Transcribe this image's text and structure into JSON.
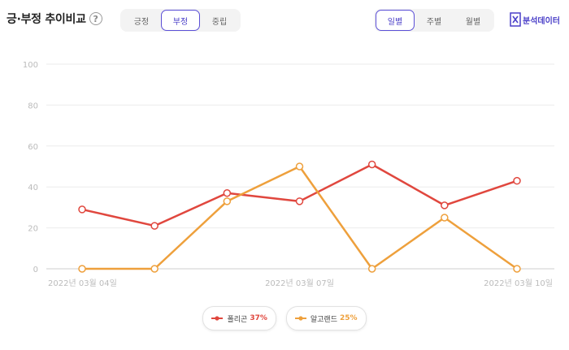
{
  "header": {
    "title": "긍·부정 추이비교",
    "help_symbol": "?",
    "sentiment_tabs": [
      "긍정",
      "부정",
      "중립"
    ],
    "sentiment_active": 1,
    "period_tabs": [
      "일별",
      "주별",
      "월별"
    ],
    "period_active": 0,
    "analysis_label": "분석데이터"
  },
  "colors": {
    "accent": "#5b4fd6",
    "series1": "#e0473e",
    "series2": "#eea03c"
  },
  "chart_data": {
    "type": "line",
    "x": [
      "2022-03-04",
      "2022-03-05",
      "2022-03-06",
      "2022-03-07",
      "2022-03-08",
      "2022-03-09",
      "2022-03-10"
    ],
    "x_tick_labels": [
      "2022년 03월 04일",
      "2022년 03월 07일",
      "2022년 03월 10일"
    ],
    "x_tick_index": [
      0,
      3,
      6
    ],
    "ylim": [
      0,
      100
    ],
    "yticks": [
      0,
      20,
      40,
      60,
      80,
      100
    ],
    "grid": true,
    "series": [
      {
        "name": "폴리곤",
        "percent": "37%",
        "color": "#e0473e",
        "values": [
          29,
          21,
          37,
          33,
          51,
          31,
          43
        ]
      },
      {
        "name": "알고랜드",
        "percent": "25%",
        "color": "#eea03c",
        "values": [
          0,
          0,
          33,
          50,
          0,
          25,
          0
        ]
      }
    ]
  }
}
